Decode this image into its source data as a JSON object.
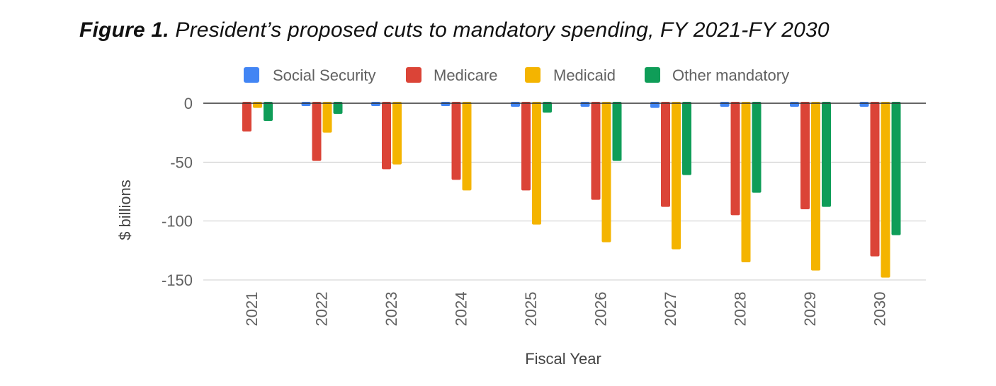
{
  "figure": {
    "label": "Figure 1.",
    "caption": "President’s proposed cuts to mandatory spending, FY 2021-FY 2030"
  },
  "chart_data": {
    "type": "bar",
    "title": "President’s proposed cuts to mandatory spending, FY 2021-FY 2030",
    "xlabel": "Fiscal Year",
    "ylabel": "$ billions",
    "ylim": [
      -150,
      0
    ],
    "yticks": [
      0,
      -50,
      -100,
      -150
    ],
    "ytick_labels": [
      "0",
      "-50",
      "-100",
      "-150"
    ],
    "legend_position": "top",
    "grid": true,
    "categories": [
      "2021",
      "2022",
      "2023",
      "2024",
      "2025",
      "2026",
      "2027",
      "2028",
      "2029",
      "2030"
    ],
    "series": [
      {
        "name": "Social Security",
        "color": "#4285F4",
        "values": [
          0,
          -2,
          -2,
          -2,
          -3,
          -3,
          -4,
          -3,
          -3,
          -3
        ]
      },
      {
        "name": "Medicare",
        "color": "#DB4437",
        "values": [
          -24,
          -49,
          -56,
          -65,
          -74,
          -82,
          -88,
          -95,
          -90,
          -130
        ]
      },
      {
        "name": "Medicaid",
        "color": "#F4B400",
        "values": [
          -4,
          -25,
          -52,
          -74,
          -103,
          -118,
          -124,
          -135,
          -142,
          -148
        ]
      },
      {
        "name": "Other mandatory",
        "color": "#0F9D58",
        "values": [
          -15,
          -9,
          0,
          0,
          -8,
          -49,
          -61,
          -76,
          -88,
          -112
        ]
      }
    ]
  }
}
